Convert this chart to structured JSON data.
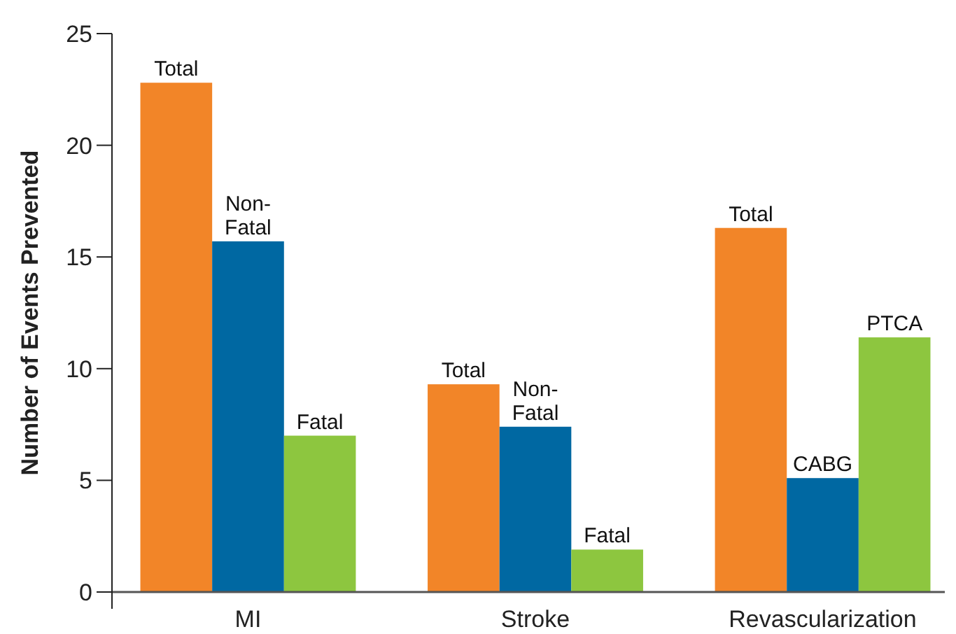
{
  "chart_data": {
    "type": "bar",
    "ylabel": "Number of Events Prevented",
    "categories": [
      "MI",
      "Stroke",
      "Revascularization"
    ],
    "series": [
      {
        "color": "#f28528",
        "values": [
          22.8,
          9.3,
          16.3
        ],
        "value_labels": [
          "Total",
          "Total",
          "Total"
        ]
      },
      {
        "color": "#0068a2",
        "values": [
          15.7,
          7.4,
          5.1
        ],
        "value_labels": [
          "Non-Fatal",
          "Non-Fatal",
          "CABG"
        ]
      },
      {
        "color": "#8dc63f",
        "values": [
          7.0,
          1.9,
          11.4
        ],
        "value_labels": [
          "Fatal",
          "Fatal",
          "PTCA"
        ]
      }
    ],
    "ylim": [
      0,
      25
    ],
    "yticks": [
      0,
      5,
      10,
      15,
      20,
      25
    ],
    "grid": false
  }
}
